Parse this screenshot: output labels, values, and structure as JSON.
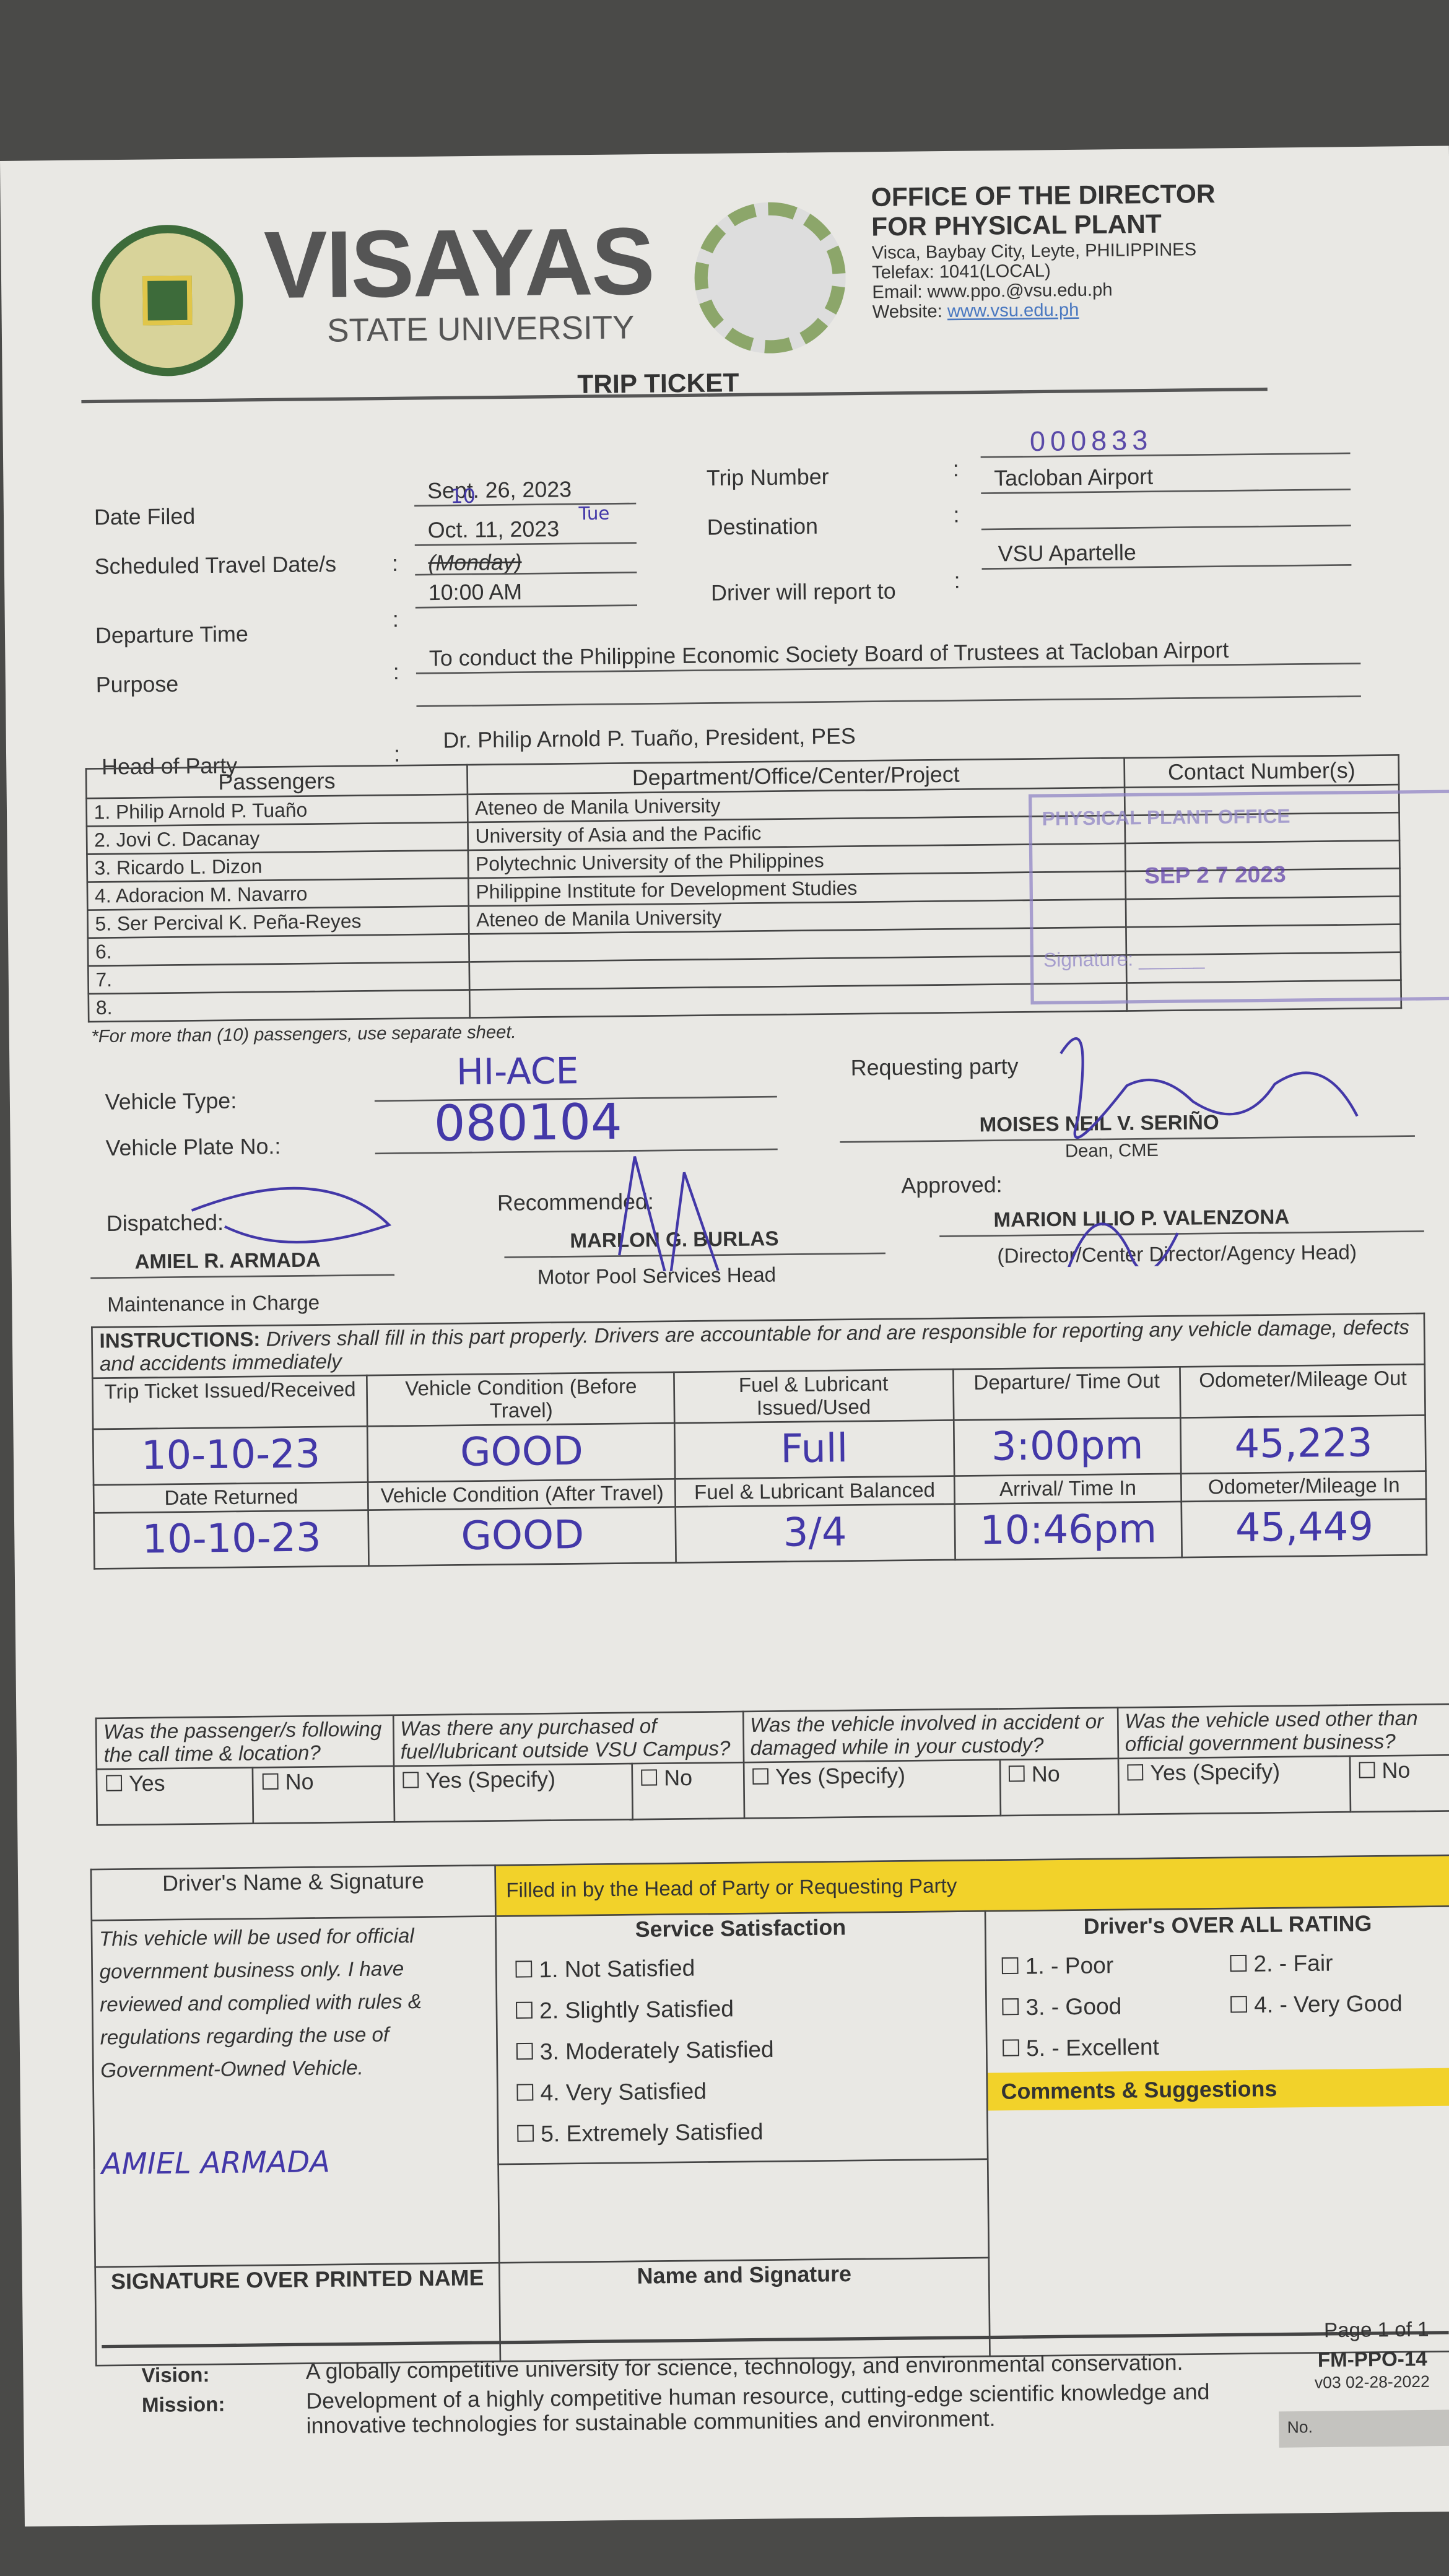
{
  "header": {
    "university_name": "VISAYAS",
    "university_sub": "STATE UNIVERSITY",
    "office_title_1": "OFFICE OF THE DIRECTOR",
    "office_title_2": "FOR PHYSICAL PLANT",
    "address": "Visca, Baybay City, Leyte, PHILIPPINES",
    "telefax": "Telefax: 1041(LOCAL)",
    "email": "Email: www.ppo.@vsu.edu.ph",
    "website_label": "Website: ",
    "website": "www.vsu.edu.ph",
    "seal_text": "VISAYAS STATE UNIVERSITY",
    "ppo_logo_text": "PHYSICAL PLANT OFFICE"
  },
  "form_title": "TRIP TICKET",
  "fields": {
    "date_filed_label": "Date Filed",
    "date_filed": "Sept. 26, 2023",
    "travel_date_label": "Scheduled Travel Date/s",
    "travel_date": "Oct. 11, 2023",
    "travel_day": "(Monday)",
    "travel_date_correction": "10",
    "travel_day_correction": "Tue",
    "departure_label": "Departure Time",
    "departure": "10:00 AM",
    "trip_number_label": "Trip Number",
    "trip_number": "000833",
    "destination_label": "Destination",
    "destination": "Tacloban Airport",
    "driver_report_label": "Driver will report to",
    "driver_report": "VSU Apartelle",
    "purpose_label": "Purpose",
    "purpose": "To conduct the Philippine Economic Society Board of Trustees at Tacloban Airport",
    "head_label": "Head of Party",
    "head": "Dr. Philip Arnold P. Tuaño,  President, PES",
    "colon": ":"
  },
  "passengers": {
    "headers": [
      "Passengers",
      "Department/Office/Center/Project",
      "Contact Number(s)"
    ],
    "rows": [
      {
        "name": "1.  Philip Arnold P. Tuaño",
        "dept": "Ateneo de Manila University"
      },
      {
        "name": "2.  Jovi C. Dacanay",
        "dept": "University of Asia and the Pacific"
      },
      {
        "name": "3.  Ricardo L. Dizon",
        "dept": "Polytechnic University of the Philippines"
      },
      {
        "name": "4.  Adoracion M. Navarro",
        "dept": "Philippine Institute for Development Studies"
      },
      {
        "name": "5.  Ser Percival K. Peña-Reyes",
        "dept": "Ateneo de Manila University"
      },
      {
        "name": "6.",
        "dept": ""
      },
      {
        "name": "7.",
        "dept": ""
      },
      {
        "name": "8.",
        "dept": ""
      }
    ],
    "note": "*For more than (10) passengers, use separate sheet.",
    "stamp_title": "PHYSICAL PLANT OFFICE",
    "stamp_date": "SEP 2 7 2023",
    "stamp_signature": "Signature: ______"
  },
  "vehicle": {
    "type_label": "Vehicle Type:",
    "type": "HI-ACE",
    "plate_label": "Vehicle Plate No.:",
    "plate": "080104",
    "requesting_label": "Requesting party",
    "requesting_name": "MOISES NEIL V. SERIÑO",
    "requesting_title": "Dean, CME",
    "dispatched_label": "Dispatched:",
    "dispatched_name": "AMIEL R. ARMADA",
    "dispatched_title": "Maintenance in Charge",
    "recommended_label": "Recommended:",
    "recommended_name": "MARLON G. BURLAS",
    "recommended_title": "Motor Pool Services Head",
    "approved_label": "Approved:",
    "approved_name": "MARION LILIO P. VALENZONA",
    "approved_title": "(Director/Center Director/Agency Head)"
  },
  "instructions": {
    "label": "INSTRUCTIONS:",
    "text": "Drivers shall fill in this part properly.  Drivers are accountable for and are responsible for reporting any vehicle damage, defects and accidents immediately",
    "row1_headers": [
      "Trip Ticket Issued/Received",
      "Vehicle Condition (Before Travel)",
      "Fuel & Lubricant Issued/Used",
      "Departure/ Time Out",
      "Odometer/Mileage Out"
    ],
    "row1_values": [
      "10-10-23",
      "GOOD",
      "Full",
      "3:00pm",
      "45,223"
    ],
    "row2_headers": [
      "Date Returned",
      "Vehicle Condition (After Travel)",
      "Fuel & Lubricant Balanced",
      "Arrival/ Time In",
      "Odometer/Mileage In"
    ],
    "row2_values": [
      "10-10-23",
      "GOOD",
      "3/4",
      "10:46pm",
      "45,449"
    ]
  },
  "questions": [
    {
      "q": "Was the passenger/s following the call time & location?",
      "options": [
        "Yes",
        "No"
      ]
    },
    {
      "q": "Was there any purchased of fuel/lubricant outside VSU Campus?",
      "options": [
        "Yes (Specify)",
        "No"
      ]
    },
    {
      "q": "Was the vehicle involved in accident or damaged while in your custody?",
      "options": [
        "Yes (Specify)",
        "No"
      ]
    },
    {
      "q": "Was the vehicle used other than official government business?",
      "options": [
        "Yes (Specify)",
        "No"
      ]
    }
  ],
  "bottom": {
    "driver_header": "Driver's Name & Signature",
    "filled_by": "Filled in by the Head of Party or Requesting Party",
    "driver_statement": "This vehicle will be used for official government business only.  I have reviewed and complied with rules & regulations regarding the use of Government-Owned Vehicle.",
    "driver_signed_name": "AMIEL ARMADA",
    "signature_label": "SIGNATURE OVER PRINTED NAME",
    "service_header": "Service Satisfaction",
    "service_options": [
      "1.  Not Satisfied",
      "2.  Slightly Satisfied",
      "3.  Moderately Satisfied",
      "4.  Very Satisfied",
      "5.  Extremely Satisfied"
    ],
    "name_signature_label": "Name and Signature",
    "rating_header": "Driver's OVER ALL RATING",
    "rating_options": [
      "1. - Poor",
      "2. - Fair",
      "3. - Good",
      "4. - Very Good",
      "5. - Excellent"
    ],
    "comments_header": "Comments & Suggestions"
  },
  "footer": {
    "vision_label": "Vision:",
    "vision": "A globally competitive university for science, technology, and environmental conservation.",
    "mission_label": "Mission:",
    "mission": "Development of a highly competitive human resource, cutting-edge scientific knowledge and innovative technologies for sustainable communities and environment.",
    "page": "Page 1 of 1",
    "form_code": "FM-PPO-14",
    "version": "v03 02-28-2022",
    "no_label": "No."
  },
  "colors": {
    "ink": "#4338a8",
    "yellow": "#f2d22a",
    "stamp": "#8b7fc4",
    "paper": "#e9e8e4"
  }
}
